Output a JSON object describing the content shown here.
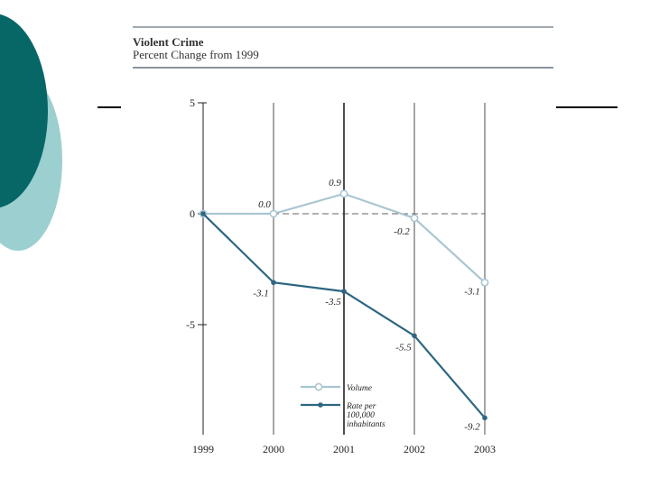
{
  "slide": {
    "accent_dark": "#066766",
    "accent_light": "#9ccfcf"
  },
  "chart_data": {
    "type": "line",
    "title": "Violent Crime",
    "subtitle": "Percent Change from 1999",
    "x": [
      "1999",
      "2000",
      "2001",
      "2002",
      "2003"
    ],
    "ylim": [
      -10,
      5
    ],
    "yticks": [
      5,
      0,
      -5
    ],
    "series": [
      {
        "name": "Volume",
        "values": [
          0.0,
          0.0,
          0.9,
          -0.2,
          -3.1
        ],
        "labels": [
          "",
          "0.0",
          "0.9",
          "-0.2",
          "-3.1"
        ],
        "color": "#a9c6d2",
        "marker": "hollow-circle"
      },
      {
        "name": "Rate per 100,000 inhabitants",
        "name_lines": [
          "Rate per",
          "100,000",
          "inhabitants"
        ],
        "values": [
          0.0,
          -3.1,
          -3.5,
          -5.5,
          -9.2
        ],
        "labels": [
          "",
          "-3.1",
          "-3.5",
          "-5.5",
          "-9.2"
        ],
        "color": "#2d6681",
        "marker": "filled-dot"
      }
    ],
    "zero_line": "dashed",
    "legend_position": "bottom-right",
    "grid": "vertical"
  }
}
